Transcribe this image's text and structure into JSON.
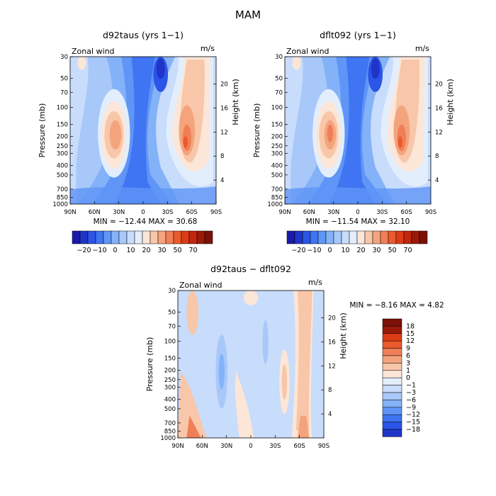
{
  "title": "MAM",
  "colors": {
    "blue9": "#1a1aa8",
    "blue8": "#2035c8",
    "blue7": "#2b55e6",
    "blue6": "#3f74f2",
    "blue5": "#5f95f6",
    "blue4": "#84b2f8",
    "blue3": "#a8c8fa",
    "blue2": "#c8dcfb",
    "blue1": "#e3eefd",
    "red1": "#fbe6d8",
    "red2": "#f8c6a8",
    "red3": "#f4a47d",
    "red4": "#f07f57",
    "red5": "#eb5a2c",
    "red6": "#dd3b15",
    "red7": "#c2260f",
    "red8": "#9a1a0a",
    "red9": "#7a1008"
  },
  "chart_data": [
    {
      "type": "heatmap",
      "name": "panel-1",
      "title": "d92taus (yrs 1−1)",
      "subtitle_left": "Zonal wind",
      "subtitle_right": "m/s",
      "ylabel": "Pressure (mb)",
      "ylabel_right": "Height (km)",
      "x_ticks": [
        "90N",
        "60N",
        "30N",
        "0",
        "30S",
        "60S",
        "90S"
      ],
      "y_ticks": [
        "30",
        "50",
        "70",
        "100",
        "150",
        "200",
        "250",
        "300",
        "400",
        "500",
        "700",
        "850",
        "1000"
      ],
      "y_ticks_right": [
        "20",
        "16",
        "12",
        "8",
        "4"
      ],
      "stats": "MIN = −12.44   MAX =  30.68",
      "min": -12.44,
      "max": 30.68,
      "colorbar_labels": [
        "−20",
        "−10",
        "0",
        "10",
        "20",
        "30",
        "50",
        "70"
      ]
    },
    {
      "type": "heatmap",
      "name": "panel-2",
      "title": "dflt092 (yrs 1−1)",
      "subtitle_left": "Zonal wind",
      "subtitle_right": "m/s",
      "ylabel": "Pressure (mb)",
      "ylabel_right": "Height (km)",
      "x_ticks": [
        "90N",
        "60N",
        "30N",
        "0",
        "30S",
        "60S",
        "90S"
      ],
      "y_ticks": [
        "30",
        "50",
        "70",
        "100",
        "150",
        "200",
        "250",
        "300",
        "400",
        "500",
        "700",
        "850",
        "1000"
      ],
      "y_ticks_right": [
        "20",
        "16",
        "12",
        "8",
        "4"
      ],
      "stats": "MIN = −11.54   MAX =  32.10",
      "min": -11.54,
      "max": 32.1,
      "colorbar_labels": [
        "−20",
        "−10",
        "0",
        "10",
        "20",
        "30",
        "50",
        "70"
      ]
    },
    {
      "type": "heatmap",
      "name": "panel-3",
      "title": "d92taus − dflt092",
      "subtitle_left": "Zonal wind",
      "subtitle_right": "m/s",
      "ylabel": "Pressure (mb)",
      "ylabel_right": "Height (km)",
      "x_ticks": [
        "90N",
        "60N",
        "30N",
        "0",
        "30S",
        "60S",
        "90S"
      ],
      "y_ticks": [
        "30",
        "50",
        "70",
        "100",
        "150",
        "200",
        "250",
        "300",
        "400",
        "500",
        "700",
        "850",
        "1000"
      ],
      "y_ticks_right": [
        "20",
        "16",
        "12",
        "8",
        "4"
      ],
      "stats": "MIN =   −8.16   MAX =   4.82",
      "min": -8.16,
      "max": 4.82,
      "colorbar_labels": [
        "18",
        "15",
        "12",
        "9",
        "6",
        "3",
        "1",
        "0",
        "−1",
        "−3",
        "−6",
        "−9",
        "−12",
        "−15",
        "−18"
      ]
    }
  ]
}
